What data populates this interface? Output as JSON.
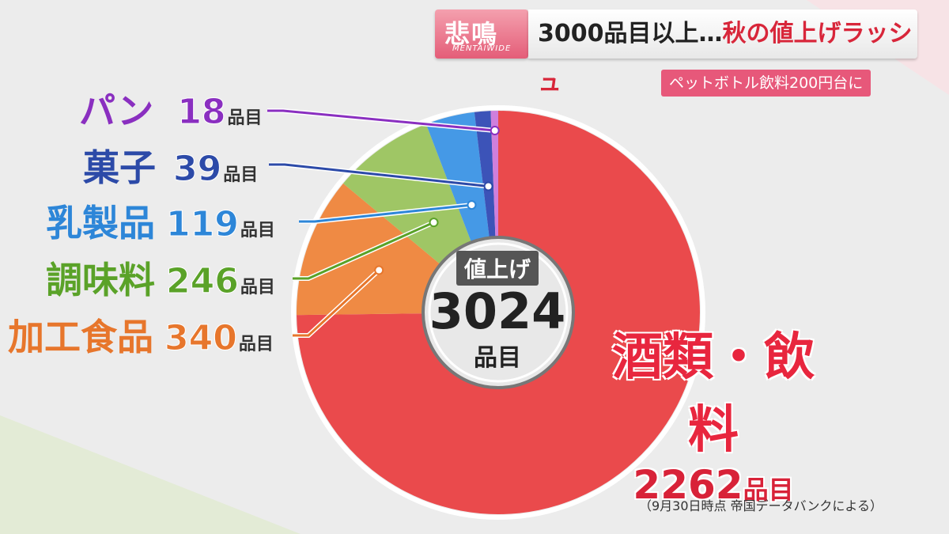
{
  "header": {
    "tag_title": "悲鳴",
    "tag_sub": "MENTAIWIDE",
    "headline_part1": "3000品目以上…",
    "headline_part2": "秋の値上げラッシュ",
    "subtag": "ペットボトル飲料200円台に"
  },
  "chart_data": {
    "type": "pie",
    "total_label": "値上げ",
    "total": 3024,
    "total_unit": "品目",
    "unit": "品目",
    "slices": [
      {
        "name": "酒類・飲料",
        "value": 2262,
        "color": "#ea4a4c"
      },
      {
        "name": "加工食品",
        "value": 340,
        "color": "#ef8a44"
      },
      {
        "name": "調味料",
        "value": 246,
        "color": "#9fc665"
      },
      {
        "name": "乳製品",
        "value": 119,
        "color": "#4599e6"
      },
      {
        "name": "菓子",
        "value": 39,
        "color": "#3c53b8"
      },
      {
        "name": "パン",
        "value": 18,
        "color": "#cf7fdc"
      }
    ],
    "label_colors": {
      "パン": "#8a2fc0",
      "菓子": "#2c4aa8",
      "乳製品": "#2d86d8",
      "調味料": "#5aa228",
      "加工食品": "#e7762c",
      "酒類・飲料": "#e8263e"
    }
  },
  "labels": {
    "pan": {
      "name": "パン",
      "num": "18",
      "unit": "品目"
    },
    "kashi": {
      "name": "菓子",
      "num": "39",
      "unit": "品目"
    },
    "nyuseihin": {
      "name": "乳製品",
      "num": "119",
      "unit": "品目"
    },
    "choumiryou": {
      "name": "調味料",
      "num": "246",
      "unit": "品目"
    },
    "kakou": {
      "name": "加工食品",
      "num": "340",
      "unit": "品目"
    },
    "sake": {
      "name": "酒類・飲料",
      "num": "2262",
      "unit": "品目"
    }
  },
  "center": {
    "tag": "値上げ",
    "num": "3024",
    "unit": "品目"
  },
  "source": "（9月30日時点 帝国データバンクによる）"
}
